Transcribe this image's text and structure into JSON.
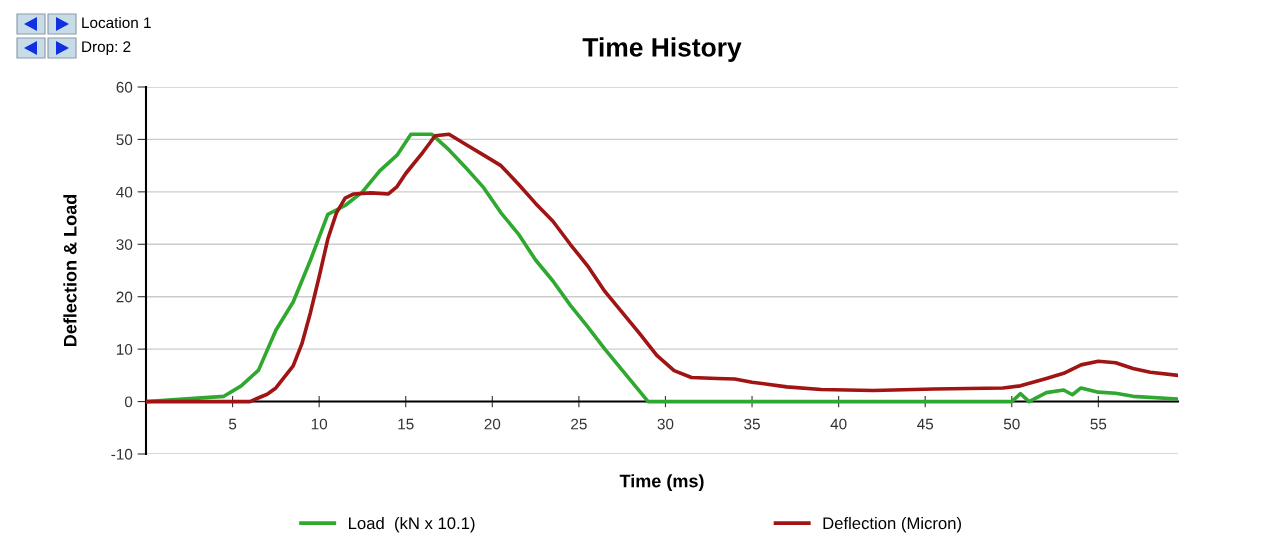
{
  "chart_data": {
    "type": "line",
    "title": "Time History",
    "xlabel": "Time (ms)",
    "ylabel": "Deflection & Load",
    "annotations": [
      "Location 1",
      "Drop: 2"
    ],
    "xlim": [
      0,
      59.6
    ],
    "xticks": [
      5,
      10,
      15,
      20,
      25,
      30,
      35,
      40,
      45,
      50,
      55
    ],
    "ylim": [
      -10,
      60
    ],
    "yticks": [
      -10,
      0,
      10,
      20,
      30,
      40,
      50,
      60
    ],
    "grid": "y",
    "legend": "bottom",
    "marker": "none",
    "line_style": "solid",
    "series": [
      {
        "name": "Load  (kN x 10.1)",
        "color": "#2ea82e",
        "x": [
          0,
          4.5,
          5.5,
          6.5,
          7.5,
          8.5,
          9.5,
          10.5,
          11.5,
          12.5,
          13.5,
          14.5,
          15.3,
          16.5,
          17.5,
          18.5,
          19.5,
          20.5,
          21.5,
          22.5,
          23.5,
          24.5,
          25.5,
          26.5,
          27.5,
          28.5,
          29,
          50,
          50.5,
          51,
          52,
          53,
          53.5,
          54,
          55,
          56,
          57,
          59.6
        ],
        "values": [
          0,
          1,
          3,
          6,
          13.6,
          19,
          27,
          35.7,
          37.4,
          40,
          44,
          47,
          51,
          51,
          48,
          44.5,
          40.8,
          36,
          32,
          27,
          23,
          18.4,
          14.3,
          10,
          6,
          2,
          0,
          0,
          1.5,
          0,
          1.7,
          2.2,
          1.3,
          2.6,
          1.8,
          1.6,
          1,
          0.5
        ]
      },
      {
        "name": "Deflection (Micron)",
        "color": "#a01414",
        "x": [
          0,
          6,
          7,
          7.5,
          8.5,
          9,
          9.5,
          10,
          10.5,
          11,
          11.5,
          12,
          13,
          14,
          14.5,
          15,
          16,
          16.7,
          17.5,
          18.5,
          19.5,
          20.5,
          21.5,
          22.5,
          23.5,
          24.5,
          25.5,
          26.5,
          27.5,
          28.5,
          29.5,
          30.5,
          31.5,
          33,
          34,
          35,
          37,
          39,
          42,
          45.5,
          49.5,
          50.5,
          52,
          53,
          54,
          55,
          56,
          57,
          58,
          59.6
        ],
        "values": [
          0,
          0,
          1.4,
          2.6,
          6.8,
          11,
          17,
          23.8,
          31,
          36,
          38.8,
          39.6,
          39.8,
          39.6,
          41,
          43.5,
          47.6,
          50.7,
          51,
          49,
          47,
          45,
          41.5,
          37.8,
          34.4,
          30,
          25.9,
          21,
          17,
          13,
          8.8,
          5.9,
          4.6,
          4.4,
          4.3,
          3.7,
          2.8,
          2.3,
          2.1,
          2.4,
          2.6,
          3,
          4.4,
          5.4,
          7,
          7.7,
          7.4,
          6.3,
          5.6,
          5
        ]
      }
    ]
  }
}
